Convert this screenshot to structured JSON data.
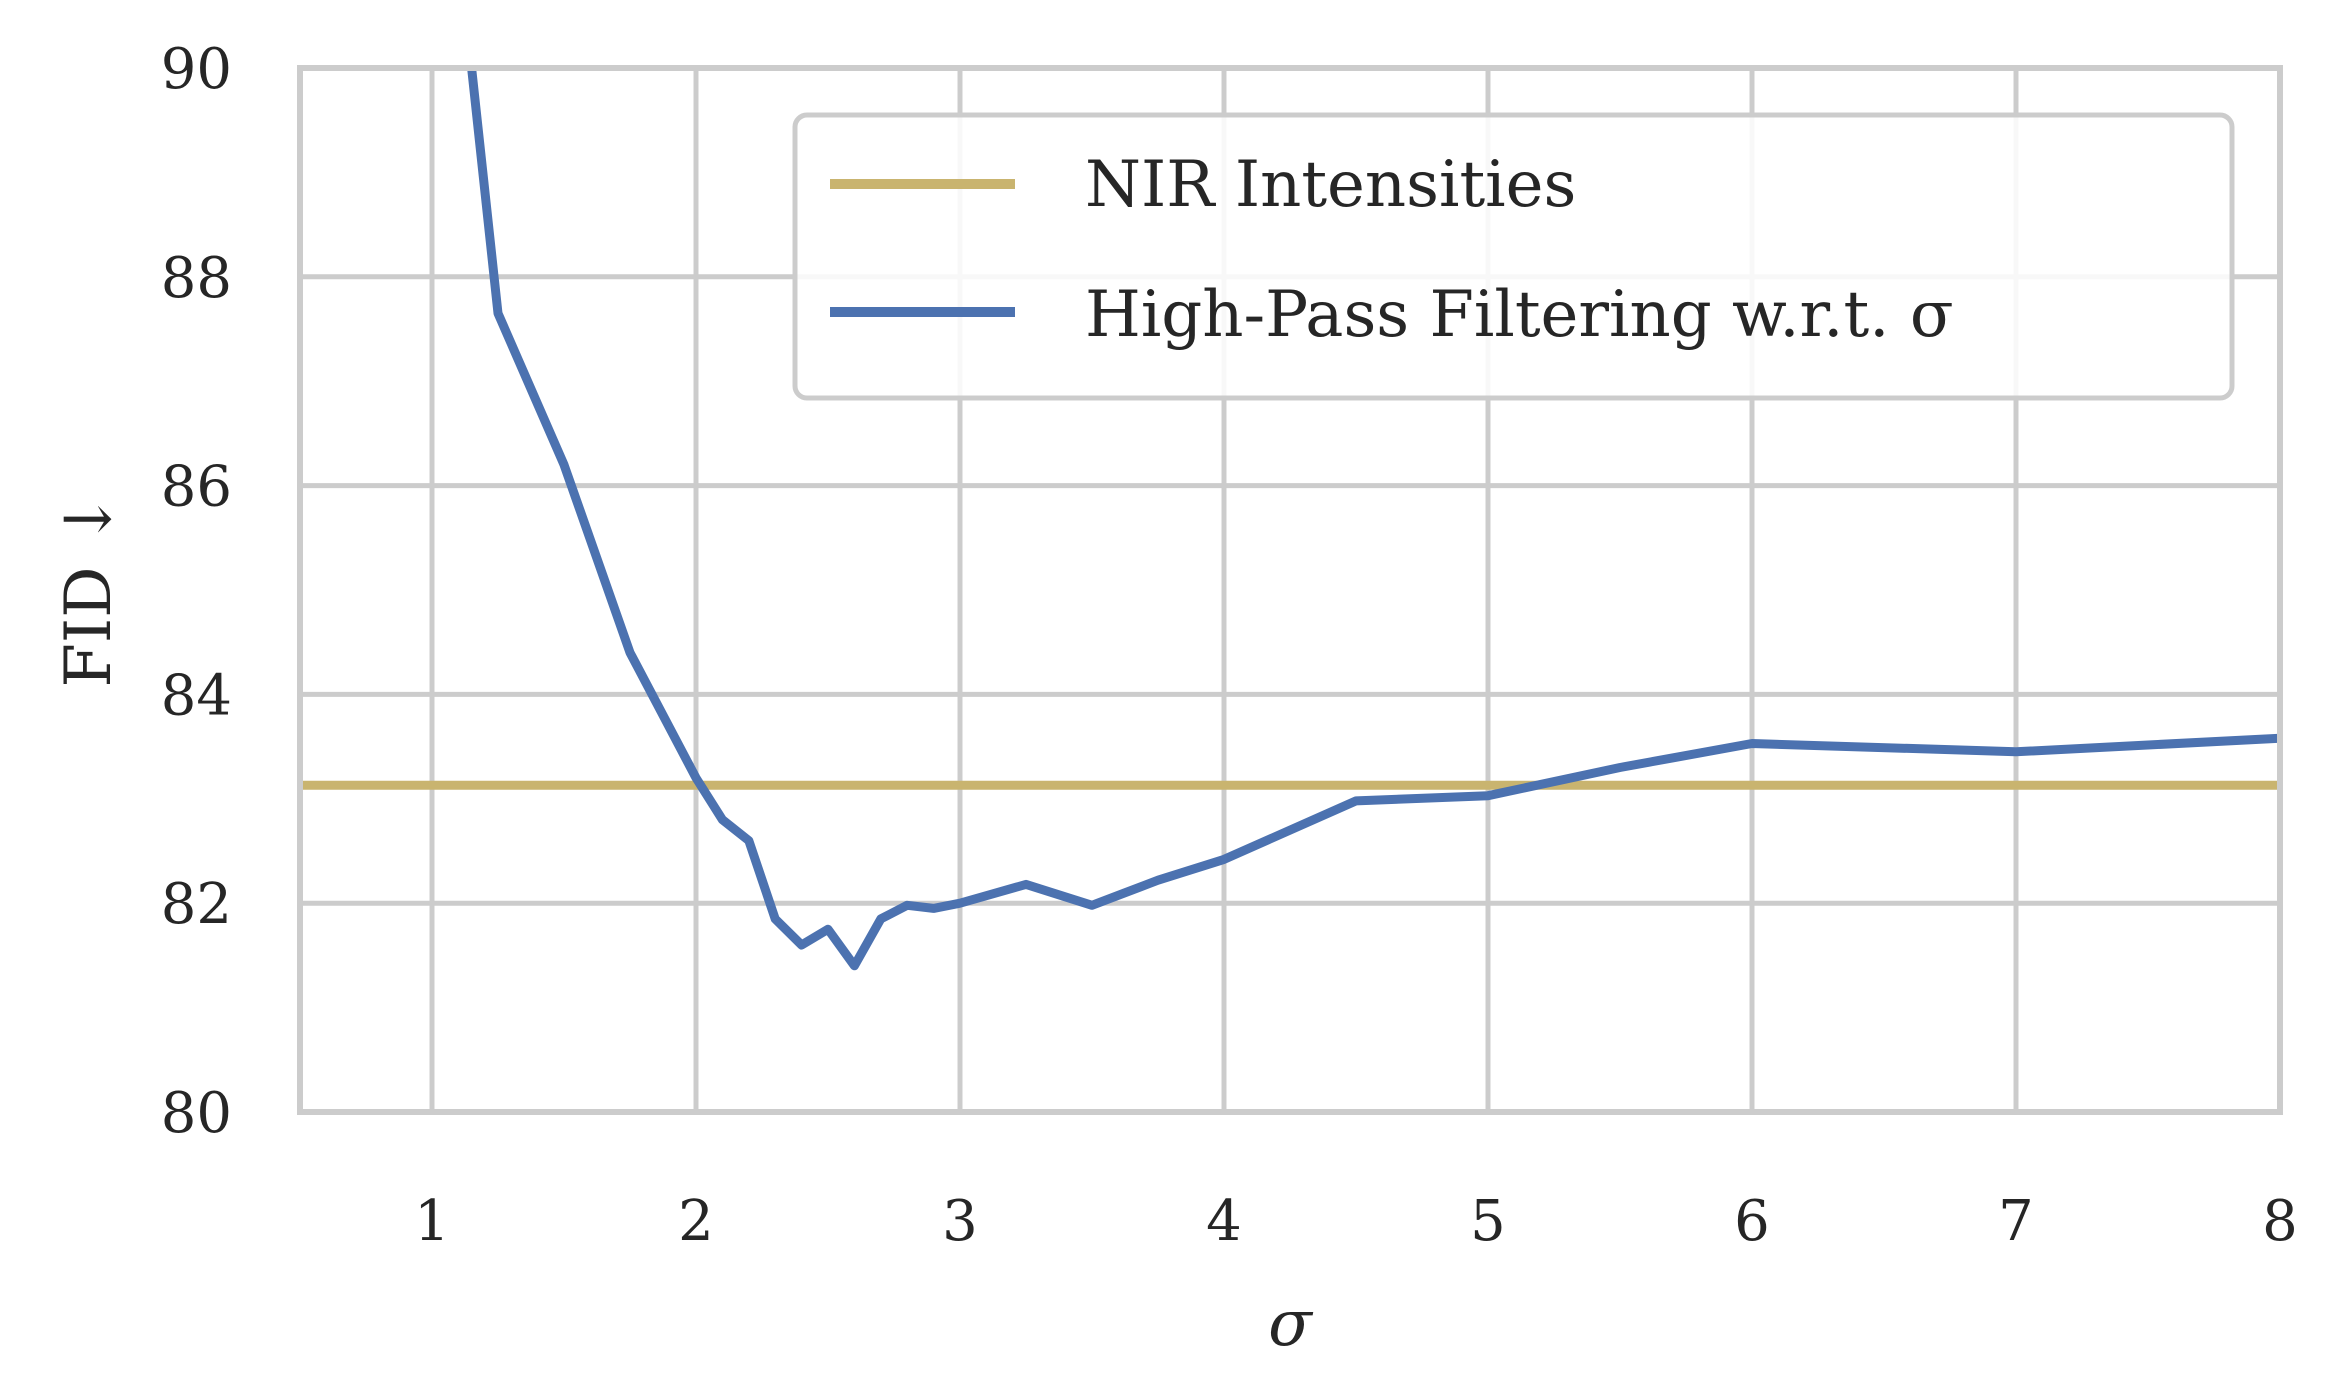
{
  "chart_data": {
    "type": "line",
    "xlabel": "σ",
    "ylabel": "FID ↓",
    "xlim": [
      0.5,
      8
    ],
    "ylim": [
      80,
      90
    ],
    "xticks": [
      1,
      2,
      3,
      4,
      5,
      6,
      7,
      8
    ],
    "yticks": [
      80,
      82,
      84,
      86,
      88,
      90
    ],
    "xtick_labels": [
      "1",
      "2",
      "3",
      "4",
      "5",
      "6",
      "7",
      "8"
    ],
    "ytick_labels": [
      "80",
      "82",
      "84",
      "86",
      "88",
      "90"
    ],
    "grid": true,
    "legend_position": "top-right",
    "series": [
      {
        "name": "NIR Intensities",
        "color": "#c9b46f",
        "x": [
          0.5,
          8
        ],
        "values": [
          83.13,
          83.13
        ]
      },
      {
        "name": "High-Pass Filtering w.r.t. σ",
        "color": "#4c72b0",
        "x": [
          1.1,
          1.15,
          1.25,
          1.5,
          1.75,
          2.0,
          2.1,
          2.2,
          2.3,
          2.4,
          2.5,
          2.6,
          2.7,
          2.8,
          2.9,
          3.0,
          3.25,
          3.5,
          3.75,
          4.0,
          4.5,
          5.0,
          5.5,
          6.0,
          7.0,
          8.0
        ],
        "values": [
          90.6,
          90.0,
          87.65,
          86.2,
          84.4,
          83.2,
          82.8,
          82.6,
          81.85,
          81.6,
          81.75,
          81.4,
          81.85,
          81.98,
          81.95,
          82.0,
          82.18,
          81.98,
          82.22,
          82.42,
          82.98,
          83.03,
          83.3,
          83.53,
          83.45,
          83.58
        ]
      }
    ]
  }
}
